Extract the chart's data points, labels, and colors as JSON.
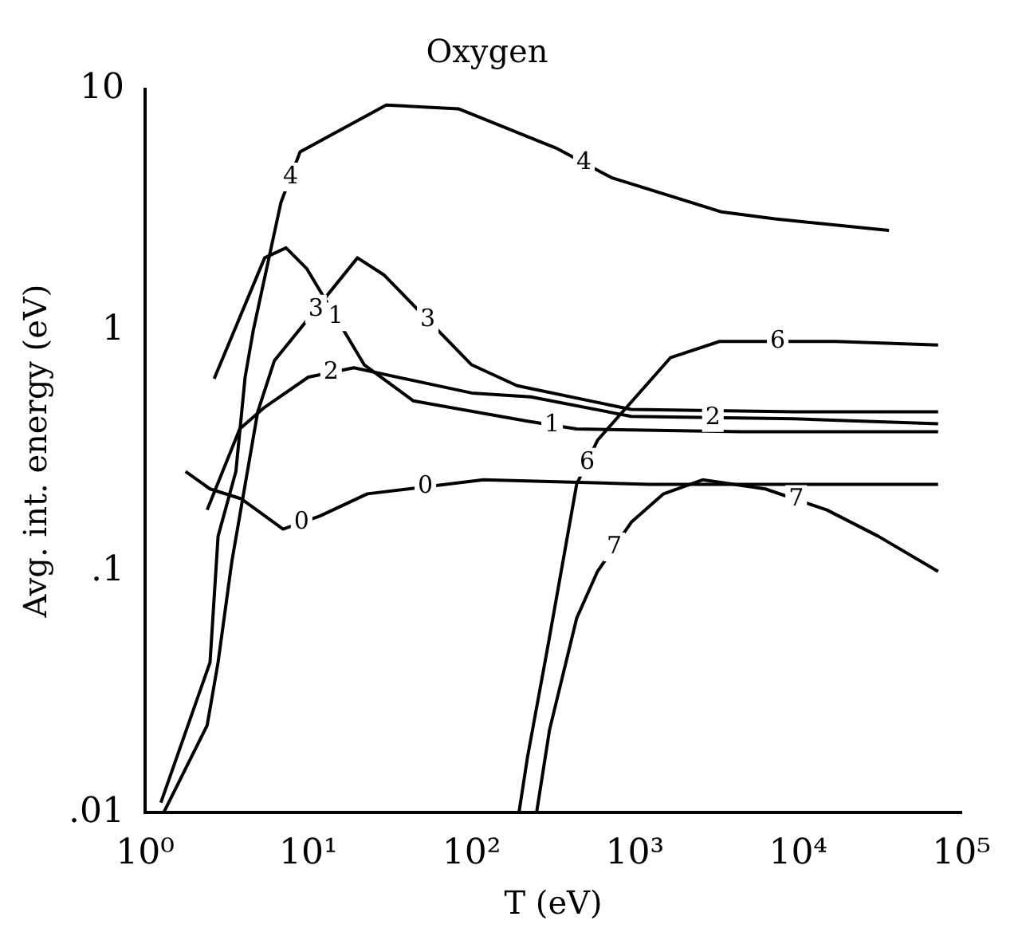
{
  "chart_data": {
    "type": "line",
    "title": "Oxygen",
    "xlabel": "T (eV)",
    "ylabel": "Avg. int. energy (eV)",
    "log": "xy",
    "grid": false,
    "legend": false,
    "marker": "none",
    "line_style": "solid",
    "xlim": [
      1,
      100000
    ],
    "xticks": [
      {
        "value": 1,
        "label": "10⁰"
      },
      {
        "value": 10,
        "label": "10¹"
      },
      {
        "value": 100,
        "label": "10²"
      },
      {
        "value": 1000,
        "label": "10³"
      },
      {
        "value": 10000,
        "label": "10⁴"
      },
      {
        "value": 100000,
        "label": "10⁵"
      }
    ],
    "ylim": [
      0.01,
      10
    ],
    "yticks": [
      {
        "value": 0.01,
        "label": ".01"
      },
      {
        "value": 0.1,
        "label": ".1"
      },
      1,
      10
    ],
    "series": [
      {
        "name": "0",
        "color": "#000000",
        "x": [
          1.77,
          2.5,
          3.9,
          7.0,
          11.8,
          23,
          118,
          1210,
          72000
        ],
        "values": [
          0.26,
          0.22,
          0.2,
          0.15,
          0.17,
          0.21,
          0.24,
          0.23,
          0.23
        ]
      },
      {
        "name": "1",
        "color": "#000000",
        "x": [
          2.65,
          5.4,
          7.3,
          9.8,
          22,
          44,
          220,
          440,
          4500,
          72000
        ],
        "values": [
          0.63,
          2.0,
          2.2,
          1.8,
          0.72,
          0.51,
          0.42,
          0.39,
          0.38,
          0.38
        ]
      },
      {
        "name": "2",
        "color": "#000000",
        "x": [
          2.4,
          3.8,
          5.4,
          10,
          19,
          100,
          230,
          950,
          9500,
          72000
        ],
        "values": [
          0.18,
          0.39,
          0.48,
          0.64,
          0.7,
          0.55,
          0.53,
          0.44,
          0.43,
          0.41
        ]
      },
      {
        "name": "3",
        "color": "#000000",
        "x": [
          1.3,
          2.4,
          2.8,
          3.4,
          4.9,
          6.2,
          20,
          29,
          100,
          190,
          950,
          9500,
          72000
        ],
        "values": [
          0.01,
          0.023,
          0.042,
          0.11,
          0.46,
          0.75,
          2.0,
          1.7,
          0.72,
          0.59,
          0.47,
          0.46,
          0.46
        ]
      },
      {
        "name": "4",
        "color": "#000000",
        "x": [
          1.25,
          2.5,
          2.8,
          3.6,
          4.1,
          4.6,
          6.8,
          8.9,
          30,
          83,
          330,
          720,
          3400,
          7200,
          36000
        ],
        "values": [
          0.011,
          0.042,
          0.14,
          0.26,
          0.64,
          1.0,
          3.4,
          5.5,
          8.6,
          8.3,
          5.7,
          4.3,
          3.1,
          2.9,
          2.6
        ]
      },
      {
        "name": "6",
        "color": "#000000",
        "x": [
          195,
          220,
          290,
          440,
          590,
          1650,
          3300,
          17000,
          72000
        ],
        "values": [
          0.01,
          0.017,
          0.047,
          0.23,
          0.35,
          0.77,
          0.9,
          0.9,
          0.87
        ]
      },
      {
        "name": "7",
        "color": "#000000",
        "x": [
          250,
          300,
          440,
          590,
          950,
          1500,
          2600,
          6300,
          15000,
          31000,
          72000
        ],
        "values": [
          0.01,
          0.022,
          0.064,
          0.1,
          0.16,
          0.21,
          0.24,
          0.22,
          0.18,
          0.14,
          0.1
        ]
      }
    ]
  }
}
